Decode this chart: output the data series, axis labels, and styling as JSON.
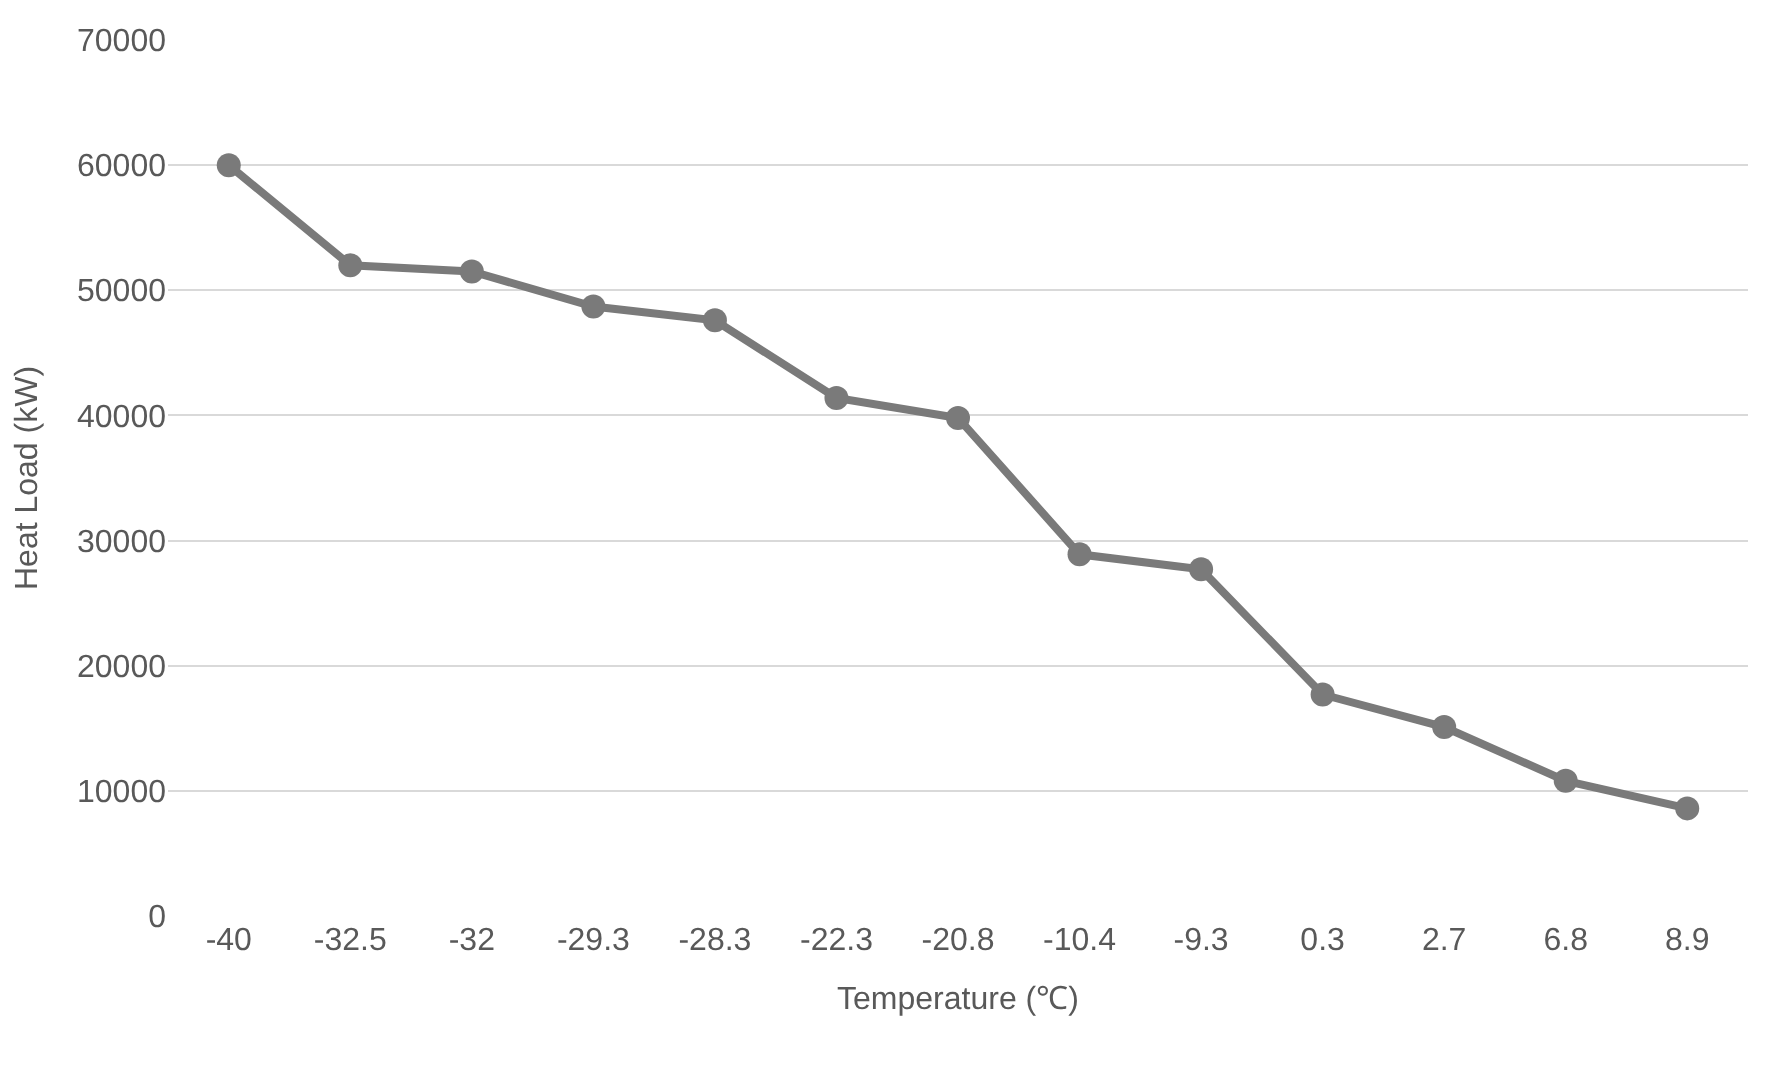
{
  "chart_data": {
    "type": "line",
    "xlabel": "Temperature (℃)",
    "ylabel": "Heat Load (kW)",
    "categories": [
      "-40",
      "-32.5",
      "-32",
      "-29.3",
      "-28.3",
      "-22.3",
      "-20.8",
      "-10.4",
      "-9.3",
      "0.3",
      "2.7",
      "6.8",
      "8.9"
    ],
    "series": [
      {
        "color": "#7a7a7a",
        "values": [
          60000,
          52000,
          51500,
          48700,
          47600,
          41400,
          39800,
          28900,
          27700,
          17700,
          15100,
          10800,
          8600
        ]
      }
    ],
    "ylim": [
      0,
      70000
    ],
    "yticks": [
      0,
      10000,
      20000,
      30000,
      40000,
      50000,
      60000,
      70000
    ],
    "grid": "y",
    "marker": "circle",
    "line_style": "solid",
    "legend": false
  }
}
